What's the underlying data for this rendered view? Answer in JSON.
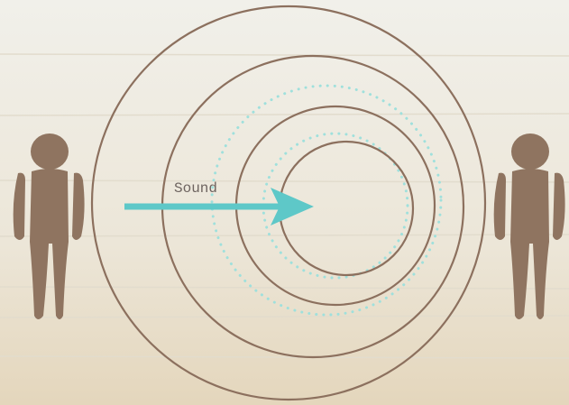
{
  "label": "Sound"
}
